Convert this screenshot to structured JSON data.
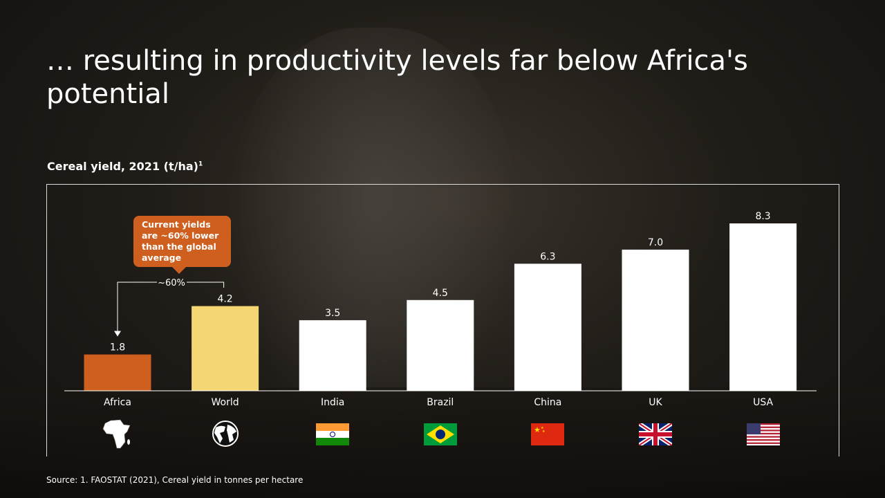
{
  "title": "… resulting in productivity levels far below Africa's potential",
  "subtitle": "Cereal yield, 2021 (t/ha)",
  "subtitle_sup": "1",
  "callout": "Current yields are ~60% lower than the global average",
  "gap_label": "~60%",
  "source": "Source: 1. FAOSTAT (2021), Cereal yield in tonnes per hectare",
  "chart_data": {
    "type": "bar",
    "title": "Cereal yield, 2021 (t/ha)",
    "categories": [
      "Africa",
      "World",
      "India",
      "Brazil",
      "China",
      "UK",
      "USA"
    ],
    "values": [
      1.8,
      4.2,
      3.5,
      4.5,
      6.3,
      7.0,
      8.3
    ],
    "value_labels": [
      "1.8",
      "4.2",
      "3.5",
      "4.5",
      "6.3",
      "7.0",
      "8.3"
    ],
    "colors": [
      "#cf5f1e",
      "#f4d774",
      "#ffffff",
      "#ffffff",
      "#ffffff",
      "#ffffff",
      "#ffffff"
    ],
    "icons": [
      "africa-map-icon",
      "globe-icon",
      "india-flag-icon",
      "brazil-flag-icon",
      "china-flag-icon",
      "uk-flag-icon",
      "usa-flag-icon"
    ],
    "xlabel": "",
    "ylabel": "",
    "ylim": [
      0,
      8.3
    ]
  }
}
